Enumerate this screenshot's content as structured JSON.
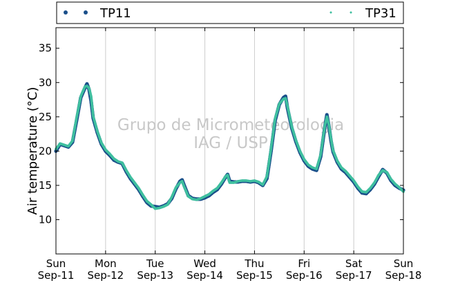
{
  "chart_data": {
    "type": "scatter",
    "ylabel": "Air temperature (°C)",
    "ylim": [
      5,
      38
    ],
    "yticks": [
      10,
      15,
      20,
      25,
      30,
      35
    ],
    "xlim": [
      "2011-09-11T00:00",
      "2011-09-18T00:00"
    ],
    "xtick_labels": [
      {
        "day": "Sun",
        "date": "Sep-11"
      },
      {
        "day": "Mon",
        "date": "Sep-12"
      },
      {
        "day": "Tue",
        "date": "Sep-13"
      },
      {
        "day": "Wed",
        "date": "Sep-14"
      },
      {
        "day": "Thu",
        "date": "Sep-15"
      },
      {
        "day": "Fri",
        "date": "Sep-16"
      },
      {
        "day": "Sat",
        "date": "Sep-17"
      },
      {
        "day": "Sun",
        "date": "Sep-18"
      }
    ],
    "grid": "vertical",
    "legend_position": "top",
    "watermark": [
      "Grupo de Micrometeorologia",
      "IAG / USP"
    ],
    "series": [
      {
        "name": "TP11",
        "color": "#1a4f8a",
        "points": [
          [
            "2011-09-11T00:00",
            20.0
          ],
          [
            "2011-09-11T02:00",
            21.0
          ],
          [
            "2011-09-11T04:00",
            20.8
          ],
          [
            "2011-09-11T06:00",
            20.6
          ],
          [
            "2011-09-11T08:00",
            21.3
          ],
          [
            "2011-09-11T10:00",
            24.5
          ],
          [
            "2011-09-11T12:00",
            27.8
          ],
          [
            "2011-09-11T14:00",
            29.2
          ],
          [
            "2011-09-11T15:00",
            29.8
          ],
          [
            "2011-09-11T16:00",
            29.0
          ],
          [
            "2011-09-11T17:00",
            27.3
          ],
          [
            "2011-09-11T18:00",
            24.8
          ],
          [
            "2011-09-11T20:00",
            22.7
          ],
          [
            "2011-09-11T22:00",
            21.0
          ],
          [
            "2011-09-12T00:00",
            20.0
          ],
          [
            "2011-09-12T02:00",
            19.4
          ],
          [
            "2011-09-12T04:00",
            18.7
          ],
          [
            "2011-09-12T06:00",
            18.4
          ],
          [
            "2011-09-12T08:00",
            18.2
          ],
          [
            "2011-09-12T10:00",
            17.0
          ],
          [
            "2011-09-12T12:00",
            16.0
          ],
          [
            "2011-09-12T14:00",
            15.2
          ],
          [
            "2011-09-12T16:00",
            14.4
          ],
          [
            "2011-09-12T18:00",
            13.4
          ],
          [
            "2011-09-12T20:00",
            12.5
          ],
          [
            "2011-09-12T22:00",
            12.0
          ],
          [
            "2011-09-13T00:00",
            11.9
          ],
          [
            "2011-09-13T02:00",
            11.8
          ],
          [
            "2011-09-13T04:00",
            12.0
          ],
          [
            "2011-09-13T06:00",
            12.3
          ],
          [
            "2011-09-13T08:00",
            13.1
          ],
          [
            "2011-09-13T10:00",
            14.5
          ],
          [
            "2011-09-13T12:00",
            15.6
          ],
          [
            "2011-09-13T13:00",
            15.8
          ],
          [
            "2011-09-13T14:00",
            15.0
          ],
          [
            "2011-09-13T16:00",
            13.5
          ],
          [
            "2011-09-13T18:00",
            13.1
          ],
          [
            "2011-09-13T20:00",
            13.0
          ],
          [
            "2011-09-13T22:00",
            13.0
          ],
          [
            "2011-09-14T00:00",
            13.2
          ],
          [
            "2011-09-14T02:00",
            13.5
          ],
          [
            "2011-09-14T04:00",
            14.0
          ],
          [
            "2011-09-14T06:00",
            14.4
          ],
          [
            "2011-09-14T08:00",
            15.2
          ],
          [
            "2011-09-14T10:00",
            16.2
          ],
          [
            "2011-09-14T11:00",
            16.6
          ],
          [
            "2011-09-14T12:00",
            15.6
          ],
          [
            "2011-09-14T14:00",
            15.5
          ],
          [
            "2011-09-14T16:00",
            15.5
          ],
          [
            "2011-09-14T18:00",
            15.6
          ],
          [
            "2011-09-14T20:00",
            15.6
          ],
          [
            "2011-09-14T22:00",
            15.5
          ],
          [
            "2011-09-15T00:00",
            15.6
          ],
          [
            "2011-09-15T02:00",
            15.4
          ],
          [
            "2011-09-15T04:00",
            15.0
          ],
          [
            "2011-09-15T06:00",
            16.0
          ],
          [
            "2011-09-15T08:00",
            20.0
          ],
          [
            "2011-09-15T10:00",
            24.5
          ],
          [
            "2011-09-15T12:00",
            26.8
          ],
          [
            "2011-09-15T14:00",
            27.8
          ],
          [
            "2011-09-15T15:00",
            28.0
          ],
          [
            "2011-09-15T16:00",
            26.2
          ],
          [
            "2011-09-15T18:00",
            23.4
          ],
          [
            "2011-09-15T20:00",
            21.4
          ],
          [
            "2011-09-15T22:00",
            19.8
          ],
          [
            "2011-09-16T00:00",
            18.6
          ],
          [
            "2011-09-16T02:00",
            17.8
          ],
          [
            "2011-09-16T04:00",
            17.4
          ],
          [
            "2011-09-16T06:00",
            17.2
          ],
          [
            "2011-09-16T08:00",
            19.2
          ],
          [
            "2011-09-16T10:00",
            23.5
          ],
          [
            "2011-09-16T11:00",
            25.3
          ],
          [
            "2011-09-16T12:00",
            23.6
          ],
          [
            "2011-09-16T13:00",
            21.5
          ],
          [
            "2011-09-16T14:00",
            19.9
          ],
          [
            "2011-09-16T16:00",
            18.4
          ],
          [
            "2011-09-16T18:00",
            17.4
          ],
          [
            "2011-09-16T20:00",
            16.9
          ],
          [
            "2011-09-16T22:00",
            16.2
          ],
          [
            "2011-09-17T00:00",
            15.5
          ],
          [
            "2011-09-17T02:00",
            14.6
          ],
          [
            "2011-09-17T04:00",
            13.9
          ],
          [
            "2011-09-17T06:00",
            13.8
          ],
          [
            "2011-09-17T08:00",
            14.4
          ],
          [
            "2011-09-17T10:00",
            15.2
          ],
          [
            "2011-09-17T12:00",
            16.3
          ],
          [
            "2011-09-17T14:00",
            17.3
          ],
          [
            "2011-09-17T16:00",
            16.8
          ],
          [
            "2011-09-17T18:00",
            15.7
          ],
          [
            "2011-09-17T20:00",
            15.0
          ],
          [
            "2011-09-17T22:00",
            14.6
          ],
          [
            "2011-09-18T00:00",
            14.3
          ]
        ]
      },
      {
        "name": "TP31",
        "color": "#3fbf9f",
        "points": [
          [
            "2011-09-11T00:00",
            20.3
          ],
          [
            "2011-09-11T02:00",
            21.1
          ],
          [
            "2011-09-11T04:00",
            20.9
          ],
          [
            "2011-09-11T06:00",
            20.7
          ],
          [
            "2011-09-11T08:00",
            21.5
          ],
          [
            "2011-09-11T10:00",
            24.9
          ],
          [
            "2011-09-11T12:00",
            28.0
          ],
          [
            "2011-09-11T14:00",
            29.4
          ],
          [
            "2011-09-11T15:00",
            29.5
          ],
          [
            "2011-09-11T16:00",
            29.2
          ],
          [
            "2011-09-11T17:00",
            28.0
          ],
          [
            "2011-09-11T18:00",
            25.1
          ],
          [
            "2011-09-11T20:00",
            22.9
          ],
          [
            "2011-09-11T22:00",
            21.2
          ],
          [
            "2011-09-12T00:00",
            20.2
          ],
          [
            "2011-09-12T02:00",
            19.6
          ],
          [
            "2011-09-12T04:00",
            18.9
          ],
          [
            "2011-09-12T06:00",
            18.5
          ],
          [
            "2011-09-12T08:00",
            18.3
          ],
          [
            "2011-09-12T10:00",
            17.2
          ],
          [
            "2011-09-12T12:00",
            16.2
          ],
          [
            "2011-09-12T14:00",
            15.4
          ],
          [
            "2011-09-12T16:00",
            14.6
          ],
          [
            "2011-09-12T18:00",
            13.6
          ],
          [
            "2011-09-12T20:00",
            12.7
          ],
          [
            "2011-09-12T22:00",
            12.2
          ],
          [
            "2011-09-13T00:00",
            11.6
          ],
          [
            "2011-09-13T02:00",
            11.7
          ],
          [
            "2011-09-13T04:00",
            11.9
          ],
          [
            "2011-09-13T06:00",
            12.2
          ],
          [
            "2011-09-13T08:00",
            13.3
          ],
          [
            "2011-09-13T10:00",
            14.7
          ],
          [
            "2011-09-13T12:00",
            15.4
          ],
          [
            "2011-09-13T13:00",
            15.6
          ],
          [
            "2011-09-13T14:00",
            14.8
          ],
          [
            "2011-09-13T16:00",
            13.4
          ],
          [
            "2011-09-13T18:00",
            13.0
          ],
          [
            "2011-09-13T20:00",
            12.9
          ],
          [
            "2011-09-13T22:00",
            13.1
          ],
          [
            "2011-09-14T00:00",
            13.4
          ],
          [
            "2011-09-14T02:00",
            13.7
          ],
          [
            "2011-09-14T04:00",
            14.2
          ],
          [
            "2011-09-14T06:00",
            14.6
          ],
          [
            "2011-09-14T08:00",
            15.4
          ],
          [
            "2011-09-14T10:00",
            16.3
          ],
          [
            "2011-09-14T11:00",
            16.5
          ],
          [
            "2011-09-14T12:00",
            15.4
          ],
          [
            "2011-09-14T14:00",
            15.4
          ],
          [
            "2011-09-14T16:00",
            15.6
          ],
          [
            "2011-09-14T18:00",
            15.7
          ],
          [
            "2011-09-14T20:00",
            15.7
          ],
          [
            "2011-09-14T22:00",
            15.6
          ],
          [
            "2011-09-15T00:00",
            15.7
          ],
          [
            "2011-09-15T02:00",
            15.5
          ],
          [
            "2011-09-15T04:00",
            15.1
          ],
          [
            "2011-09-15T06:00",
            16.3
          ],
          [
            "2011-09-15T08:00",
            20.4
          ],
          [
            "2011-09-15T10:00",
            24.8
          ],
          [
            "2011-09-15T12:00",
            26.9
          ],
          [
            "2011-09-15T14:00",
            27.6
          ],
          [
            "2011-09-15T15:00",
            27.7
          ],
          [
            "2011-09-15T16:00",
            26.5
          ],
          [
            "2011-09-15T18:00",
            23.6
          ],
          [
            "2011-09-15T20:00",
            21.6
          ],
          [
            "2011-09-15T22:00",
            20.0
          ],
          [
            "2011-09-16T00:00",
            18.8
          ],
          [
            "2011-09-16T02:00",
            18.0
          ],
          [
            "2011-09-16T04:00",
            17.6
          ],
          [
            "2011-09-16T06:00",
            17.4
          ],
          [
            "2011-09-16T08:00",
            19.5
          ],
          [
            "2011-09-16T10:00",
            23.7
          ],
          [
            "2011-09-16T11:00",
            25.0
          ],
          [
            "2011-09-16T12:00",
            23.8
          ],
          [
            "2011-09-16T13:00",
            21.8
          ],
          [
            "2011-09-16T14:00",
            20.1
          ],
          [
            "2011-09-16T16:00",
            18.6
          ],
          [
            "2011-09-16T18:00",
            17.6
          ],
          [
            "2011-09-16T20:00",
            17.1
          ],
          [
            "2011-09-16T22:00",
            16.4
          ],
          [
            "2011-09-17T00:00",
            15.7
          ],
          [
            "2011-09-17T02:00",
            14.8
          ],
          [
            "2011-09-17T04:00",
            14.1
          ],
          [
            "2011-09-17T06:00",
            14.0
          ],
          [
            "2011-09-17T08:00",
            14.6
          ],
          [
            "2011-09-17T10:00",
            15.4
          ],
          [
            "2011-09-17T12:00",
            16.5
          ],
          [
            "2011-09-17T14:00",
            17.2
          ],
          [
            "2011-09-17T16:00",
            16.9
          ],
          [
            "2011-09-17T18:00",
            15.9
          ],
          [
            "2011-09-17T20:00",
            15.2
          ],
          [
            "2011-09-17T22:00",
            14.7
          ],
          [
            "2011-09-18T00:00",
            14.1
          ]
        ]
      }
    ]
  }
}
